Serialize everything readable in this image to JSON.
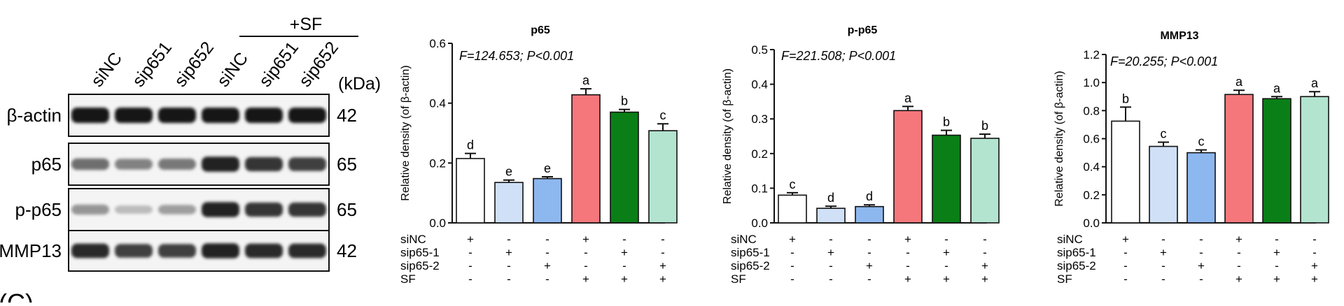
{
  "western_blot": {
    "treatment_header": "+SF",
    "lane_labels": [
      "siNC",
      "sip651",
      "sip652",
      "siNC",
      "sip651",
      "sip652"
    ],
    "kda_label": "(kDa)",
    "bands": [
      {
        "name": "β-actin",
        "kda": "42",
        "intensities": [
          1.0,
          1.0,
          1.0,
          1.0,
          1.0,
          1.0
        ]
      },
      {
        "name": "p65",
        "kda": "65",
        "intensities": [
          0.55,
          0.45,
          0.5,
          0.95,
          0.85,
          0.8
        ]
      },
      {
        "name": "p-p65",
        "kda": "65",
        "intensities": [
          0.35,
          0.15,
          0.3,
          0.95,
          0.85,
          0.85
        ]
      },
      {
        "name": "MMP13",
        "kda": "42",
        "intensities": [
          0.9,
          0.8,
          0.8,
          0.95,
          0.9,
          0.9
        ]
      }
    ],
    "corner_text": "(C)"
  },
  "chart_data": [
    {
      "type": "bar",
      "title": "p65",
      "stat_text": "F=124.653; P<0.001",
      "ylabel": "Relative density (of β-actin)",
      "ylim": [
        0,
        0.6
      ],
      "yticks": [
        "0.0",
        "0.2",
        "0.4",
        "0.6"
      ],
      "values": [
        0.215,
        0.135,
        0.148,
        0.428,
        0.37,
        0.308
      ],
      "errors": [
        0.017,
        0.008,
        0.006,
        0.02,
        0.009,
        0.023
      ],
      "letters": [
        "d",
        "e",
        "e",
        "a",
        "b",
        "c"
      ],
      "colors": [
        "#ffffff",
        "#cfe0f7",
        "#8db7ef",
        "#f5777c",
        "#0a7e17",
        "#b2e4d0"
      ],
      "row_labels": [
        "siNC",
        "sip65-1",
        "sip65-2",
        "SF"
      ],
      "row_signs": [
        [
          "+",
          "-",
          "-",
          "+",
          "-",
          "-"
        ],
        [
          "-",
          "+",
          "-",
          "-",
          "+",
          "-"
        ],
        [
          "-",
          "-",
          "+",
          "-",
          "-",
          "+"
        ],
        [
          "-",
          "-",
          "-",
          "+",
          "+",
          "+"
        ]
      ]
    },
    {
      "type": "bar",
      "title": "p-p65",
      "stat_text": "F=221.508; P<0.001",
      "ylabel": "Relative density (of β-actin)",
      "ylim": [
        0,
        0.5
      ],
      "yticks": [
        "0.0",
        "0.1",
        "0.2",
        "0.3",
        "0.4",
        "0.5"
      ],
      "values": [
        0.08,
        0.042,
        0.047,
        0.324,
        0.253,
        0.244
      ],
      "errors": [
        0.007,
        0.006,
        0.005,
        0.012,
        0.014,
        0.012
      ],
      "letters": [
        "c",
        "d",
        "d",
        "a",
        "b",
        "b"
      ],
      "colors": [
        "#ffffff",
        "#cfe0f7",
        "#8db7ef",
        "#f5777c",
        "#0a7e17",
        "#b2e4d0"
      ],
      "row_labels": [
        "siNC",
        "sip65-1",
        "sip65-2",
        "SF"
      ],
      "row_signs": [
        [
          "+",
          "-",
          "-",
          "+",
          "-",
          "-"
        ],
        [
          "-",
          "+",
          "-",
          "-",
          "+",
          "-"
        ],
        [
          "-",
          "-",
          "+",
          "-",
          "-",
          "+"
        ],
        [
          "-",
          "-",
          "-",
          "+",
          "+",
          "+"
        ]
      ]
    },
    {
      "type": "bar",
      "title": "MMP13",
      "stat_text": "F=20.255; P<0.001",
      "ylabel": "Relative density (of β-actin)",
      "ylim": [
        0,
        1.2
      ],
      "yticks": [
        "0.0",
        "0.2",
        "0.4",
        "0.6",
        "0.8",
        "1.0",
        "1.2"
      ],
      "values": [
        0.725,
        0.545,
        0.5,
        0.915,
        0.885,
        0.9
      ],
      "errors": [
        0.1,
        0.03,
        0.02,
        0.03,
        0.015,
        0.035
      ],
      "letters": [
        "b",
        "c",
        "c",
        "a",
        "a",
        "a"
      ],
      "colors": [
        "#ffffff",
        "#cfe0f7",
        "#8db7ef",
        "#f5777c",
        "#0a7e17",
        "#b2e4d0"
      ],
      "row_labels": [
        "siNC",
        "sip65-1",
        "sip65-2",
        "SF"
      ],
      "row_signs": [
        [
          "+",
          "-",
          "-",
          "+",
          "-",
          "-"
        ],
        [
          "-",
          "+",
          "-",
          "-",
          "+",
          "-"
        ],
        [
          "-",
          "-",
          "+",
          "-",
          "-",
          "+"
        ],
        [
          "-",
          "-",
          "-",
          "+",
          "+",
          "+"
        ]
      ]
    }
  ]
}
